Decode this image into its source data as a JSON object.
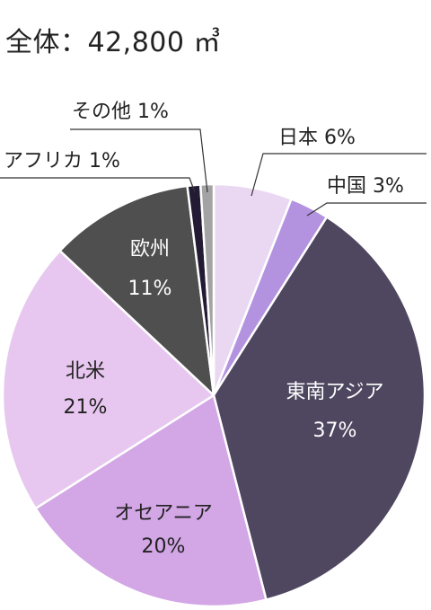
{
  "chart_data": {
    "type": "pie",
    "title": "全体：42,800 ㎥",
    "slices": [
      {
        "label": "日本",
        "pct_text": "6%",
        "value": 6,
        "color": "#ead8f3"
      },
      {
        "label": "中国",
        "pct_text": "3%",
        "value": 3,
        "color": "#b393e0"
      },
      {
        "label": "東南アジア",
        "pct_text": "37%",
        "value": 37,
        "color": "#4f4660"
      },
      {
        "label": "オセアニア",
        "pct_text": "20%",
        "value": 20,
        "color": "#d3a6e6"
      },
      {
        "label": "北米",
        "pct_text": "21%",
        "value": 21,
        "color": "#e7c7ef"
      },
      {
        "label": "欧州",
        "pct_text": "11%",
        "value": 11,
        "color": "#4f4f4f"
      },
      {
        "label": "アフリカ",
        "pct_text": "1%",
        "value": 1,
        "color": "#231a33"
      },
      {
        "label": "その他",
        "pct_text": "1%",
        "value": 1,
        "color": "#a3a3a3"
      }
    ]
  }
}
